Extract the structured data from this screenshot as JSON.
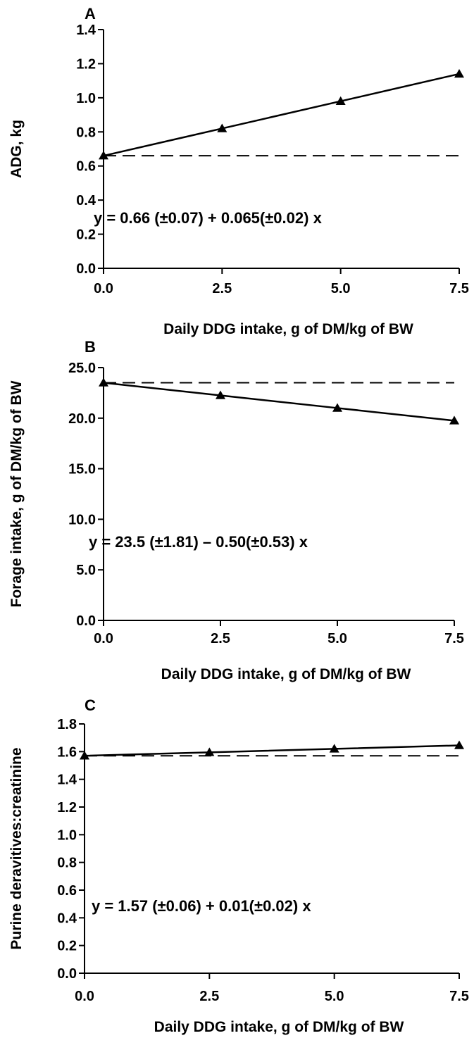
{
  "chart_data": [
    {
      "type": "line",
      "panel_label": "A",
      "xlabel": "Daily DDG intake, g of DM/kg of BW",
      "ylabel": "ADG, kg",
      "xlim": [
        0,
        7.5
      ],
      "ylim": [
        0,
        1.4
      ],
      "x_ticks": [
        0,
        2.5,
        5,
        7.5
      ],
      "x_tick_labels": [
        "0.0",
        "2.5",
        "5.0",
        "7.5"
      ],
      "y_ticks": [
        0,
        0.2,
        0.4,
        0.6,
        0.8,
        1.0,
        1.2,
        1.4
      ],
      "y_tick_labels": [
        "0.0",
        "0.2",
        "0.4",
        "0.6",
        "0.8",
        "1.0",
        "1.2",
        "1.4"
      ],
      "x": [
        0,
        2.5,
        5,
        7.5
      ],
      "y": [
        0.66,
        0.82,
        0.98,
        1.14
      ],
      "reference_line": 0.66,
      "equation": "y = 0.66 (±0.07) + 0.065(±0.02) x",
      "grid": false
    },
    {
      "type": "line",
      "panel_label": "B",
      "xlabel": "Daily DDG intake, g of DM/kg of BW",
      "ylabel": "Forage intake, g of DM/kg of BW",
      "xlim": [
        0,
        7.5
      ],
      "ylim": [
        0,
        25
      ],
      "x_ticks": [
        0,
        2.5,
        5,
        7.5
      ],
      "x_tick_labels": [
        "0.0",
        "2.5",
        "5.0",
        "7.5"
      ],
      "y_ticks": [
        0,
        5,
        10,
        15,
        20,
        25
      ],
      "y_tick_labels": [
        "0.0",
        "5.0",
        "10.0",
        "15.0",
        "20.0",
        "25.0"
      ],
      "x": [
        0,
        2.5,
        5,
        7.5
      ],
      "y": [
        23.5,
        22.25,
        21.0,
        19.75
      ],
      "reference_line": 23.5,
      "equation": "y = 23.5 (±1.81) – 0.50(±0.53) x",
      "grid": false
    },
    {
      "type": "line",
      "panel_label": "C",
      "xlabel": "Daily DDG intake, g of DM/kg of BW",
      "ylabel": "Purine deravitives:creatinine",
      "xlim": [
        0,
        7.5
      ],
      "ylim": [
        0,
        1.8
      ],
      "x_ticks": [
        0,
        2.5,
        5,
        7.5
      ],
      "x_tick_labels": [
        "0.0",
        "2.5",
        "5.0",
        "7.5"
      ],
      "y_ticks": [
        0,
        0.2,
        0.4,
        0.6,
        0.8,
        1.0,
        1.2,
        1.4,
        1.6,
        1.8
      ],
      "y_tick_labels": [
        "0.0",
        "0.2",
        "0.4",
        "0.6",
        "0.8",
        "1.0",
        "1.2",
        "1.4",
        "1.6",
        "1.8"
      ],
      "x": [
        0,
        2.5,
        5,
        7.5
      ],
      "y": [
        1.57,
        1.595,
        1.62,
        1.645
      ],
      "reference_line": 1.57,
      "equation": "y = 1.57 (±0.06) + 0.01(±0.02) x",
      "grid": false
    }
  ]
}
